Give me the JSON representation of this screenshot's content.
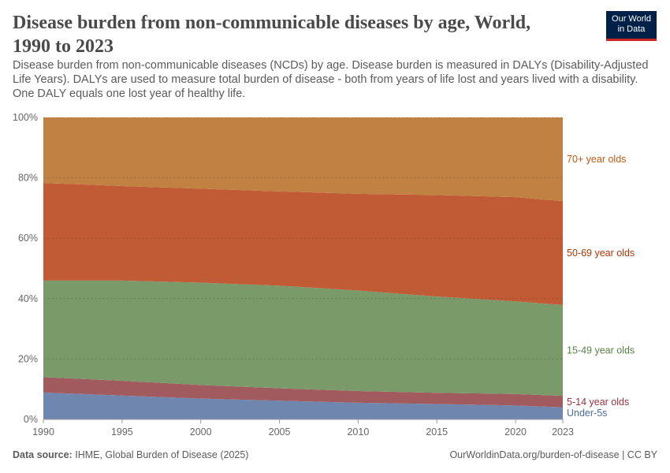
{
  "header": {
    "title": "Disease burden from non-communicable diseases by age, World, 1990 to 2023",
    "subtitle": "Disease burden from non-communicable diseases (NCDs) by age. Disease burden is measured in DALYs (Disability-Adjusted Life Years). DALYs are used to measure total burden of disease - both from years of life lost and years lived with a disability. One DALY equals one lost year of healthy life.",
    "logo_line1": "Our World",
    "logo_line2": "in Data"
  },
  "footer": {
    "source_label": "Data source:",
    "source": "IHME, Global Burden of Disease (2025)",
    "url": "OurWorldinData.org/burden-of-disease | CC BY"
  },
  "chart_data": {
    "type": "area",
    "stacked": true,
    "relative": true,
    "x": [
      1990,
      1995,
      2000,
      2005,
      2010,
      2015,
      2020,
      2023
    ],
    "xticks": [
      "1990",
      "1995",
      "2000",
      "2005",
      "2010",
      "2015",
      "2020",
      "2023"
    ],
    "yticks": [
      "0%",
      "20%",
      "40%",
      "60%",
      "80%",
      "100%"
    ],
    "ylim": [
      0,
      100
    ],
    "grid": "horizontal dashed",
    "legend": "right-inline labels",
    "series": [
      {
        "name": "Under-5s",
        "color": "#6f87ae",
        "label_color": "#4c6a9c",
        "values": [
          8.9,
          7.9,
          6.9,
          6.2,
          5.5,
          5.1,
          4.6,
          4.0
        ]
      },
      {
        "name": "5-14 year olds",
        "color": "#a15a5e",
        "label_color": "#9a3340",
        "values": [
          5.1,
          4.9,
          4.5,
          4.1,
          3.9,
          3.7,
          3.8,
          3.8
        ]
      },
      {
        "name": "15-49 year olds",
        "color": "#7a9a6a",
        "label_color": "#578145",
        "values": [
          32.0,
          33.2,
          33.9,
          34.0,
          33.3,
          31.9,
          30.7,
          30.1
        ]
      },
      {
        "name": "50-69 year olds",
        "color": "#c15b36",
        "label_color": "#b13507",
        "values": [
          32.3,
          31.3,
          31.1,
          31.2,
          32.0,
          33.6,
          34.5,
          34.4
        ]
      },
      {
        "name": "70+ year olds",
        "color": "#c08143",
        "label_color": "#be5915",
        "values": [
          21.7,
          22.7,
          23.6,
          24.5,
          25.3,
          25.7,
          26.4,
          27.7
        ]
      }
    ]
  }
}
